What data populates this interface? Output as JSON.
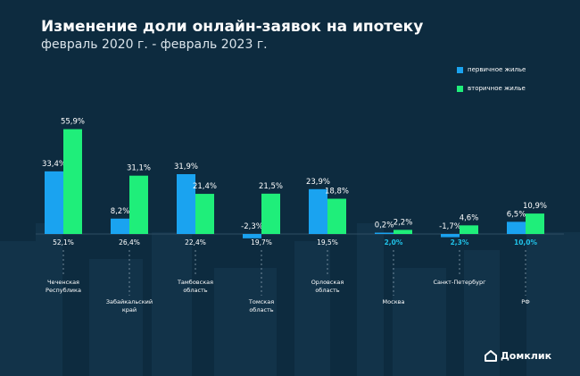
{
  "header": {
    "title": "Изменение доли онлайн-заявок на ипотеку",
    "subtitle": "февраль 2020 г. - февраль 2023 г."
  },
  "legend": {
    "primary": "первичное жилье",
    "secondary": "вторичное жилье"
  },
  "colors": {
    "primary": "#1aa3f0",
    "secondary": "#1fee7a",
    "highlight": "#20c2e8",
    "background": "#0d2b3f"
  },
  "logo": {
    "text": "Домклик",
    "icon": "house-icon"
  },
  "chart_data": {
    "type": "bar",
    "title": "Изменение доли онлайн-заявок на ипотеку",
    "subtitle": "февраль 2020 г. - февраль 2023 г.",
    "categories": [
      "Чеченская Республика",
      "Забайкальский край",
      "Тамбовская область",
      "Томская область",
      "Орловская область",
      "Москва",
      "Санкт-Петербург",
      "РФ"
    ],
    "category_lines": [
      [
        "Чеченская",
        "Республика"
      ],
      [
        "Забайкальский",
        "край"
      ],
      [
        "Тамбовская",
        "область"
      ],
      [
        "Томская",
        "область"
      ],
      [
        "Орловская",
        "область"
      ],
      [
        "Москва"
      ],
      [
        "Санкт-Петербург"
      ],
      [
        "РФ"
      ]
    ],
    "series": [
      {
        "name": "первичное жилье",
        "values": [
          33.4,
          8.2,
          31.9,
          -2.3,
          23.9,
          0.2,
          -1.7,
          6.5
        ],
        "labels": [
          "33,4%",
          "8,2%",
          "31,9%",
          "-2,3%",
          "23,9%",
          "0,2%",
          "-1,7%",
          "6,5%"
        ]
      },
      {
        "name": "вторичное жилье",
        "values": [
          55.9,
          31.1,
          21.4,
          21.5,
          18.8,
          2.2,
          4.6,
          10.9
        ],
        "labels": [
          "55,9%",
          "31,1%",
          "21,4%",
          "21,5%",
          "18,8%",
          "2,2%",
          "4,6%",
          "10,9%"
        ]
      }
    ],
    "totals": [
      "52,1%",
      "26,4%",
      "22,4%",
      "19,7%",
      "19,5%",
      "2,0%",
      "2,3%",
      "10,0%"
    ],
    "totals_highlighted": [
      false,
      false,
      false,
      false,
      false,
      true,
      true,
      true
    ],
    "legend_position": "top-right",
    "grid": false
  }
}
